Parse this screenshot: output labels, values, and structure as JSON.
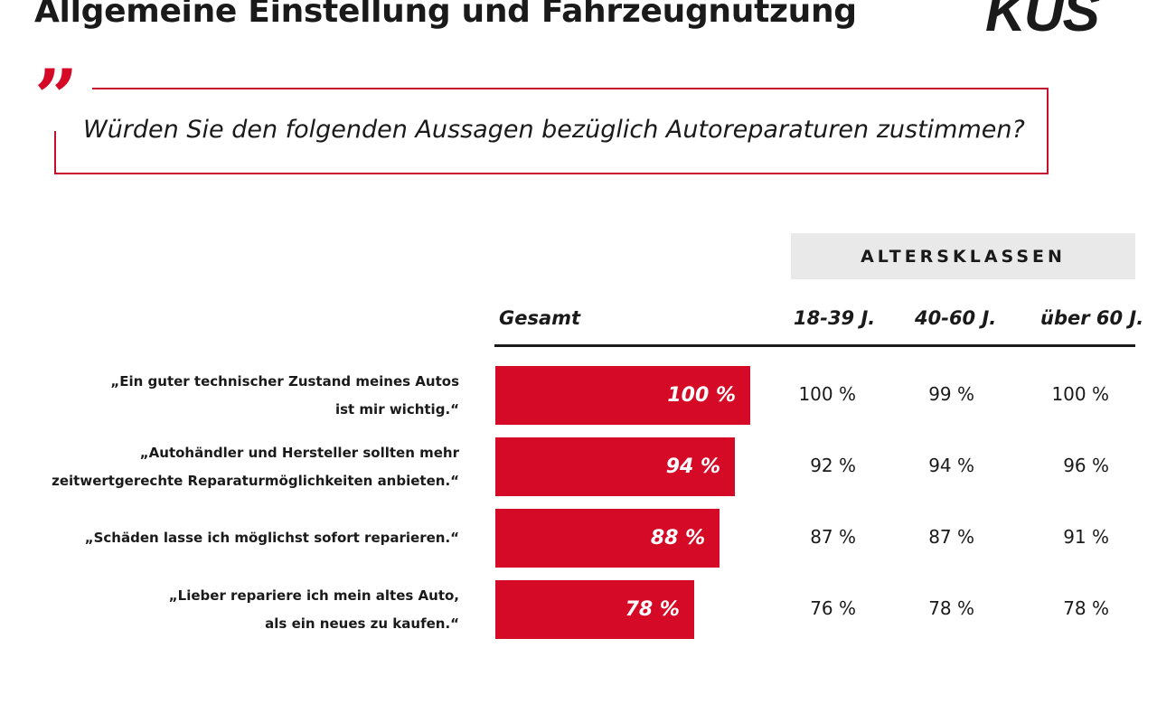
{
  "header": {
    "title": "Allgemeine Einstellung und Fahrzeugnutzung",
    "logo_text": "KUS"
  },
  "question": {
    "quote_mark": "”",
    "text": "Würden Sie den folgenden Aussagen bezüglich Autoreparaturen zustimmen?"
  },
  "colors": {
    "accent": "#d40a26",
    "frame": "#c8102e",
    "header_bg": "#e9e9e9"
  },
  "chart_data": {
    "type": "bar",
    "orientation": "horizontal",
    "title": "Würden Sie den folgenden Aussagen bezüglich Autoreparaturen zustimmen?",
    "group_header": "ALTERSKLASSEN",
    "columns": [
      "Gesamt",
      "18-39 J.",
      "40-60 J.",
      "über 60 J."
    ],
    "categories": [
      "„Ein guter technischer Zustand meines Autos ist mir wichtig.“",
      "„Autohändler und Hersteller sollten mehr zeitwertgerechte Reparaturmöglichkeiten anbieten.“",
      "„Schäden lasse ich möglichst sofort reparieren.“",
      "„Lieber repariere ich mein altes Auto, als ein neues zu kaufen.“"
    ],
    "category_lines": [
      [
        "„Ein guter technischer Zustand meines Autos",
        "ist mir wichtig.“"
      ],
      [
        "„Autohändler und Hersteller sollten mehr",
        "zeitwertgerechte Reparaturmöglichkeiten anbieten.“"
      ],
      [
        "„Schäden lasse ich möglichst sofort reparieren.“"
      ],
      [
        "„Lieber repariere ich mein altes Auto,",
        "als ein neues zu kaufen.“"
      ]
    ],
    "series": [
      {
        "name": "Gesamt",
        "values": [
          100,
          94,
          88,
          78
        ],
        "labels": [
          "100 %",
          "94 %",
          "88 %",
          "78 %"
        ],
        "display": "bar"
      },
      {
        "name": "18-39 J.",
        "values": [
          100,
          92,
          87,
          76
        ],
        "labels": [
          "100 %",
          "92 %",
          "87 %",
          "76 %"
        ],
        "display": "table"
      },
      {
        "name": "40-60 J.",
        "values": [
          99,
          94,
          87,
          78
        ],
        "labels": [
          "99 %",
          "94 %",
          "87 %",
          "78 %"
        ],
        "display": "table"
      },
      {
        "name": "über 60 J.",
        "values": [
          100,
          96,
          91,
          78
        ],
        "labels": [
          "100 %",
          "96 %",
          "91 %",
          "78 %"
        ],
        "display": "table"
      }
    ],
    "xlim": [
      0,
      100
    ],
    "unit": "%",
    "grid": false
  }
}
